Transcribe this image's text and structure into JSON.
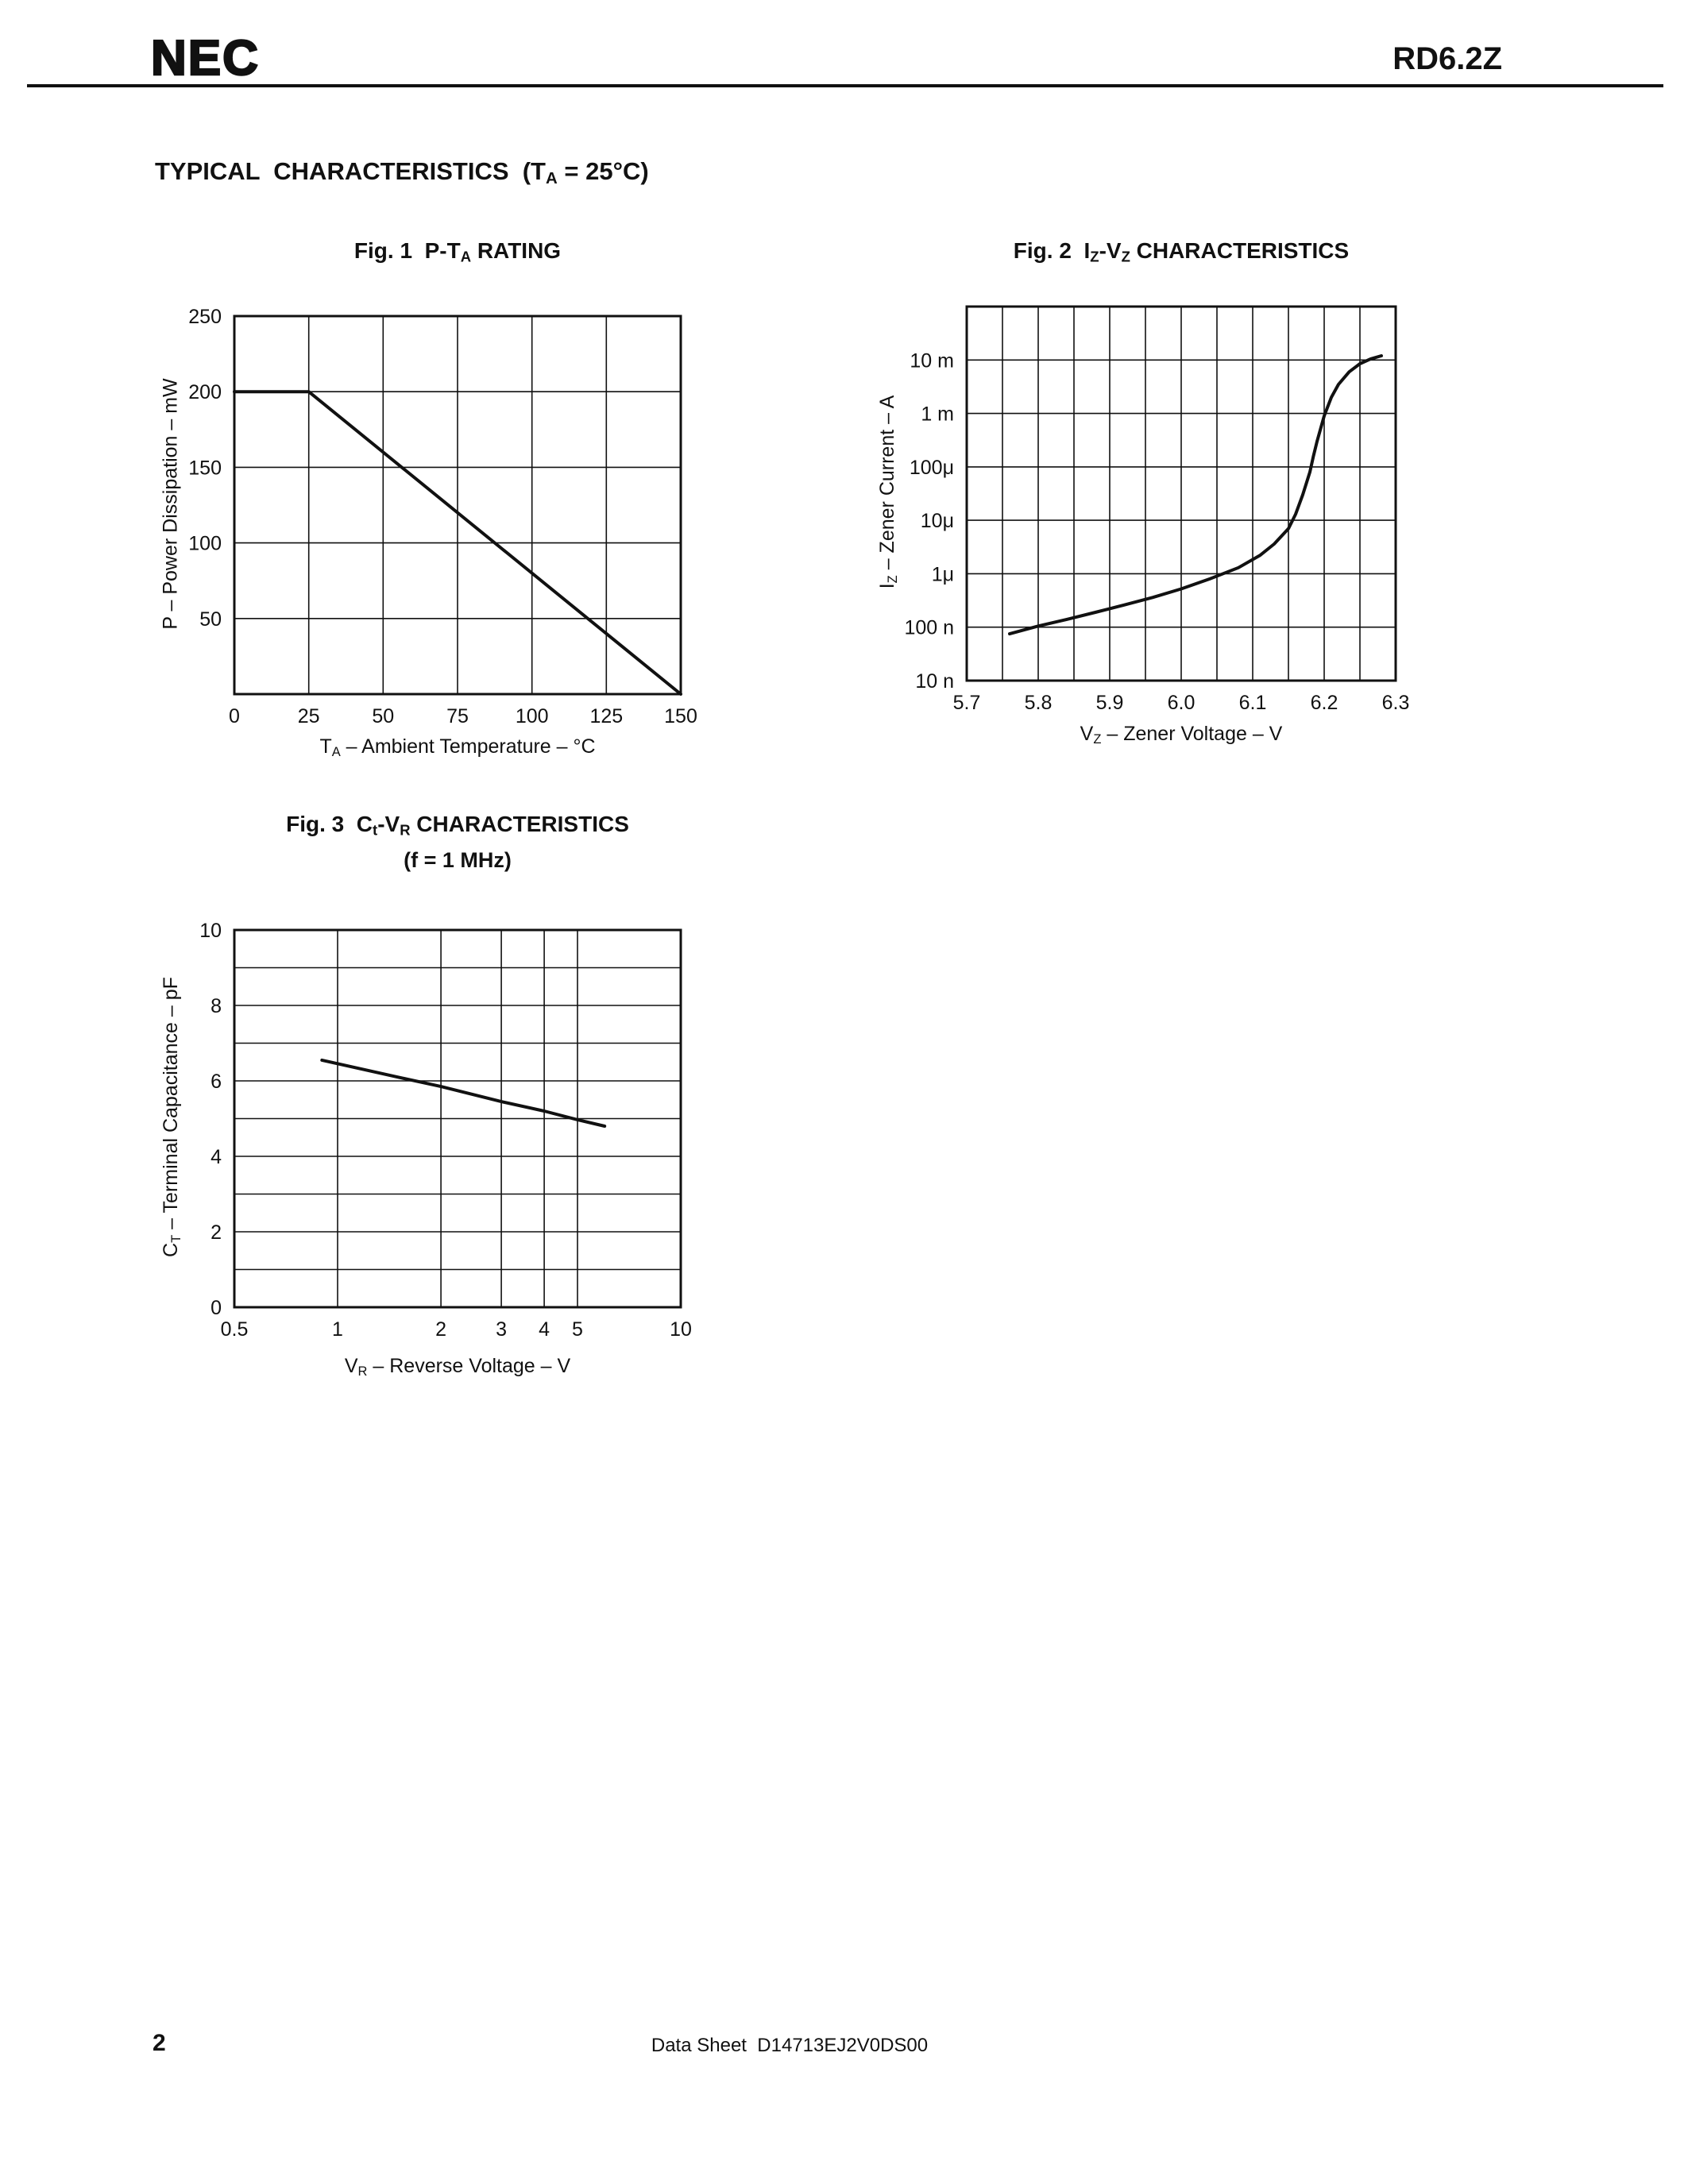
{
  "colors": {
    "ink": "#111111",
    "background": "#ffffff"
  },
  "page": {
    "brand": "NEC",
    "part_number": "RD6.2Z",
    "section_title_rich": [
      {
        "text": "TYPICAL  CHARACTERISTICS  (T"
      },
      {
        "sub": "A"
      },
      {
        "text": " = 25°C)"
      }
    ],
    "page_number": "2",
    "footer_text": "Data Sheet  D14713EJ2V0DS00"
  },
  "chart_data": [
    {
      "type": "line",
      "figure": "Fig. 1",
      "title_rich": [
        {
          "text": "Fig. 1  P-T"
        },
        {
          "sub": "A"
        },
        {
          "text": " RATING"
        }
      ],
      "x_axis": {
        "scale": "linear",
        "min": 0,
        "max": 150,
        "gridlines": [
          25,
          50,
          75,
          100,
          125
        ],
        "ticks": [
          {
            "v": 0,
            "label": "0"
          },
          {
            "v": 25,
            "label": "25"
          },
          {
            "v": 50,
            "label": "50"
          },
          {
            "v": 75,
            "label": "75"
          },
          {
            "v": 100,
            "label": "100"
          },
          {
            "v": 125,
            "label": "125"
          },
          {
            "v": 150,
            "label": "150"
          }
        ],
        "title_rich": [
          {
            "text": "T"
          },
          {
            "sub": "A"
          },
          {
            "text": " – Ambient Temperature – °C"
          }
        ]
      },
      "y_axis": {
        "scale": "linear",
        "min": 0,
        "max": 250,
        "gridlines": [
          50,
          100,
          150,
          200
        ],
        "ticks": [
          {
            "v": 50,
            "label": "50"
          },
          {
            "v": 100,
            "label": "100"
          },
          {
            "v": 150,
            "label": "150"
          },
          {
            "v": 200,
            "label": "200"
          },
          {
            "v": 250,
            "label": "250"
          }
        ],
        "title_rich": [
          {
            "text": "P – Power Dissipation – mW"
          }
        ]
      },
      "series": [
        {
          "name": "power-derating",
          "points": [
            [
              0,
              200
            ],
            [
              25,
              200
            ],
            [
              150,
              0
            ]
          ]
        }
      ]
    },
    {
      "type": "line",
      "figure": "Fig. 2",
      "title_rich": [
        {
          "text": "Fig. 2  I"
        },
        {
          "sub": "Z"
        },
        {
          "text": "-V"
        },
        {
          "sub": "Z"
        },
        {
          "text": " CHARACTERISTICS"
        }
      ],
      "x_axis": {
        "scale": "linear",
        "min": 5.7,
        "max": 6.3,
        "gridlines": [
          5.75,
          5.8,
          5.85,
          5.9,
          5.95,
          6.0,
          6.05,
          6.1,
          6.15,
          6.2,
          6.25
        ],
        "ticks": [
          {
            "v": 5.7,
            "label": "5.7"
          },
          {
            "v": 5.8,
            "label": "5.8"
          },
          {
            "v": 5.9,
            "label": "5.9"
          },
          {
            "v": 6.0,
            "label": "6.0"
          },
          {
            "v": 6.1,
            "label": "6.1"
          },
          {
            "v": 6.2,
            "label": "6.2"
          },
          {
            "v": 6.3,
            "label": "6.3"
          }
        ],
        "title_rich": [
          {
            "text": "V"
          },
          {
            "sub": "Z"
          },
          {
            "text": " – Zener Voltage – V"
          }
        ]
      },
      "y_axis": {
        "scale": "log",
        "min": 1e-08,
        "max": 0.1,
        "gridlines": [
          1e-07,
          1e-06,
          1e-05,
          0.0001,
          0.001,
          0.01
        ],
        "ticks": [
          {
            "v": 0.01,
            "label": "10 m"
          },
          {
            "v": 0.001,
            "label": "1 m"
          },
          {
            "v": 0.0001,
            "label": "100μ"
          },
          {
            "v": 1e-05,
            "label": "10μ"
          },
          {
            "v": 1e-06,
            "label": "1μ"
          },
          {
            "v": 1e-07,
            "label": "100 n"
          },
          {
            "v": 1e-08,
            "label": "10 n"
          }
        ],
        "title_rich": [
          {
            "text": "I"
          },
          {
            "sub": "Z"
          },
          {
            "text": " – Zener Current – A"
          }
        ]
      },
      "series": [
        {
          "name": "zener-iv-curve",
          "points": [
            [
              5.76,
              7.5e-08
            ],
            [
              5.8,
              1.05e-07
            ],
            [
              5.84,
              1.4e-07
            ],
            [
              5.88,
              1.9e-07
            ],
            [
              5.92,
              2.6e-07
            ],
            [
              5.96,
              3.6e-07
            ],
            [
              6.0,
              5.2e-07
            ],
            [
              6.04,
              8e-07
            ],
            [
              6.08,
              1.3e-06
            ],
            [
              6.11,
              2.2e-06
            ],
            [
              6.13,
              3.6e-06
            ],
            [
              6.15,
              7e-06
            ],
            [
              6.16,
              1.3e-05
            ],
            [
              6.17,
              3e-05
            ],
            [
              6.18,
              8e-05
            ],
            [
              6.185,
              0.00016
            ],
            [
              6.19,
              0.0003
            ],
            [
              6.2,
              0.0009
            ],
            [
              6.21,
              0.002
            ],
            [
              6.22,
              0.0035
            ],
            [
              6.235,
              0.006
            ],
            [
              6.25,
              0.0085
            ],
            [
              6.265,
              0.0105
            ],
            [
              6.28,
              0.012
            ]
          ]
        }
      ]
    },
    {
      "type": "line",
      "figure": "Fig. 3",
      "title_rich": [
        {
          "text": "Fig. 3  C"
        },
        {
          "sub": "t"
        },
        {
          "text": "-V"
        },
        {
          "sub": "R"
        },
        {
          "text": " CHARACTERISTICS"
        }
      ],
      "subtitle": "(f = 1 MHz)",
      "x_axis": {
        "scale": "log",
        "min": 0.5,
        "max": 10,
        "gridlines": [
          1,
          2,
          3,
          4,
          5
        ],
        "ticks": [
          {
            "v": 0.5,
            "label": "0.5"
          },
          {
            "v": 1,
            "label": "1"
          },
          {
            "v": 2,
            "label": "2"
          },
          {
            "v": 3,
            "label": "3"
          },
          {
            "v": 4,
            "label": "4"
          },
          {
            "v": 5,
            "label": "5"
          },
          {
            "v": 10,
            "label": "10"
          }
        ],
        "title_rich": [
          {
            "text": "V"
          },
          {
            "sub": "R"
          },
          {
            "text": " – Reverse Voltage – V"
          }
        ]
      },
      "y_axis": {
        "scale": "linear",
        "min": 0,
        "max": 10,
        "gridlines": [
          1,
          2,
          3,
          4,
          5,
          6,
          7,
          8,
          9
        ],
        "ticks": [
          {
            "v": 0,
            "label": "0"
          },
          {
            "v": 2,
            "label": "2"
          },
          {
            "v": 4,
            "label": "4"
          },
          {
            "v": 6,
            "label": "6"
          },
          {
            "v": 8,
            "label": "8"
          },
          {
            "v": 10,
            "label": "10"
          }
        ],
        "title_rich": [
          {
            "text": "C"
          },
          {
            "sub": "T"
          },
          {
            "text": " – Terminal Capacitance – pF"
          }
        ]
      },
      "series": [
        {
          "name": "terminal-capacitance",
          "points": [
            [
              0.9,
              6.55
            ],
            [
              1.5,
              6.1
            ],
            [
              2,
              5.85
            ],
            [
              3,
              5.45
            ],
            [
              4,
              5.2
            ],
            [
              5,
              4.97
            ],
            [
              6,
              4.8
            ]
          ]
        }
      ]
    }
  ]
}
